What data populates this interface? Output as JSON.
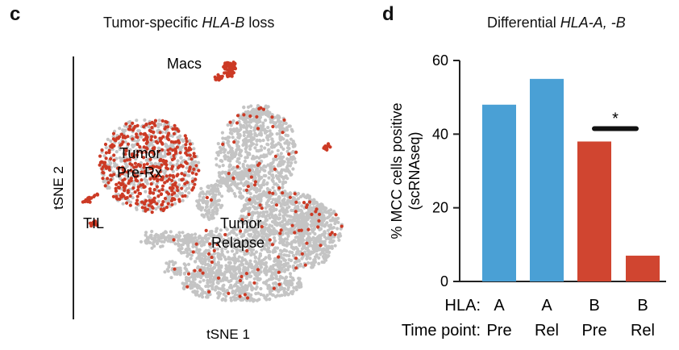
{
  "panels": {
    "c": {
      "letter": "c",
      "title_prefix": "Tumor-specific ",
      "title_italic": "HLA-B",
      "title_suffix": " loss",
      "xlabel": "tSNE 1",
      "ylabel": "tSNE 2",
      "clusters": {
        "macs": "Macs",
        "tumor_pre_1": "Tumor",
        "tumor_pre_2": "Pre-Rx",
        "til": "TIL",
        "tumor_rel_1": "Tumor",
        "tumor_rel_2": "Relapse"
      }
    },
    "d": {
      "letter": "d",
      "title_prefix": "Differential ",
      "title_italic": "HLA-A, -B",
      "significance": "*"
    }
  },
  "colors": {
    "hla_a": "#4aa0d5",
    "hla_b": "#d04530",
    "tsne_grey": "#c4c4c4",
    "tsne_red": "#cc3a25"
  },
  "chart_data": [
    {
      "type": "scatter",
      "title": "Tumor-specific HLA-B loss",
      "xlabel": "tSNE 1",
      "ylabel": "tSNE 2",
      "clusters": [
        "Macs",
        "Tumor Pre-Rx",
        "TIL",
        "Tumor Relapse"
      ]
    },
    {
      "type": "bar",
      "title": "Differential HLA-A, -B",
      "ylabel_line1": "% MCC cells positive",
      "ylabel_line2": "(scRNAseq)",
      "ylim": [
        0,
        60
      ],
      "yticks": [
        "0",
        "20",
        "40",
        "60"
      ],
      "row_labels": [
        "HLA:",
        "Time point:"
      ],
      "categories": [
        {
          "hla": "A",
          "time": "Pre"
        },
        {
          "hla": "A",
          "time": "Rel"
        },
        {
          "hla": "B",
          "time": "Pre"
        },
        {
          "hla": "B",
          "time": "Rel"
        }
      ],
      "values": [
        48,
        55,
        38,
        7
      ],
      "bar_colors": [
        "#4aa0d5",
        "#4aa0d5",
        "#d04530",
        "#d04530"
      ],
      "significance": {
        "between": [
          2,
          3
        ],
        "label": "*"
      }
    }
  ]
}
